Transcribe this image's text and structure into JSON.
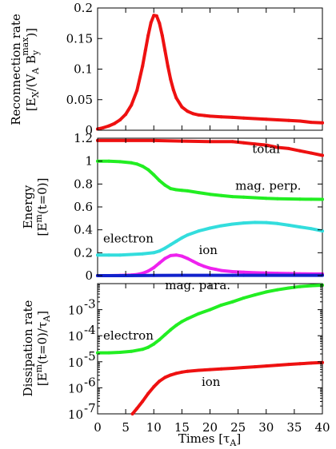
{
  "chart_data": [
    {
      "type": "line",
      "ylabel_line1": "Reconnection rate",
      "ylabel_line2": "[E",
      "ylabel_sub": "X",
      "ylabel_rest": "/(V",
      "ylabel_sub2": "A",
      "ylabel_rest2": " B",
      "ylabel_sub3": "y",
      "ylabel_sup3": "max",
      "ylabel_end": ")]",
      "xlim": [
        0,
        40
      ],
      "ylim": [
        0,
        0.2
      ],
      "yscale": "linear",
      "yticks": [
        0,
        0.05,
        0.1,
        0.15,
        0.2
      ],
      "ytick_labels": [
        "0",
        "0.05",
        "0.1",
        "0.15",
        "0.2"
      ],
      "series": [
        {
          "color": "#ee1111",
          "x": [
            0,
            1,
            2,
            3,
            4,
            5,
            6,
            7,
            8,
            8.5,
            9,
            9.5,
            10,
            10.5,
            11,
            11.5,
            12,
            12.5,
            13,
            13.5,
            14,
            15,
            16,
            17,
            18,
            19,
            20,
            22,
            24,
            26,
            28,
            30,
            32,
            34,
            36,
            38,
            40
          ],
          "y": [
            0.002,
            0.004,
            0.007,
            0.011,
            0.017,
            0.026,
            0.041,
            0.065,
            0.105,
            0.13,
            0.155,
            0.176,
            0.188,
            0.187,
            0.175,
            0.155,
            0.13,
            0.105,
            0.083,
            0.066,
            0.053,
            0.038,
            0.031,
            0.027,
            0.025,
            0.024,
            0.023,
            0.022,
            0.021,
            0.02,
            0.019,
            0.018,
            0.017,
            0.016,
            0.015,
            0.013,
            0.012
          ]
        }
      ]
    },
    {
      "type": "line",
      "ylabel_line1": "Energy",
      "ylabel_line2": "[E",
      "ylabel_sup": "m",
      "ylabel_rest": "(t=0)]",
      "xlim": [
        0,
        40
      ],
      "ylim": [
        0,
        1.2
      ],
      "yscale": "linear",
      "yticks": [
        0,
        0.2,
        0.4,
        0.6,
        0.8,
        1,
        1.2
      ],
      "ytick_labels": [
        "0",
        "0.2",
        "0.4",
        "0.6",
        "0.8",
        "1",
        "1.2"
      ],
      "annotations": [
        {
          "text": "total",
          "x": 27.5,
          "y": 1.07
        },
        {
          "text": "mag. perp.",
          "x": 24.5,
          "y": 0.75
        },
        {
          "text": "electron",
          "x": 1.0,
          "y": 0.29
        },
        {
          "text": "ion",
          "x": 18.0,
          "y": 0.19
        },
        {
          "text": "mag. para.",
          "x": 12.0,
          "y": -0.12
        }
      ],
      "series": [
        {
          "name": "total",
          "color": "#ee1111",
          "x": [
            0,
            5,
            10,
            15,
            20,
            24,
            26,
            28,
            30,
            32,
            34,
            36,
            38,
            40
          ],
          "y": [
            1.18,
            1.18,
            1.18,
            1.175,
            1.17,
            1.17,
            1.16,
            1.15,
            1.14,
            1.12,
            1.11,
            1.09,
            1.07,
            1.05
          ]
        },
        {
          "name": "mag. perp.",
          "color": "#22ee22",
          "x": [
            0,
            2,
            4,
            6,
            7,
            8,
            9,
            10,
            11,
            12,
            13,
            14,
            15,
            16,
            18,
            20,
            22,
            24,
            26,
            28,
            30,
            32,
            34,
            36,
            38,
            40
          ],
          "y": [
            1.0,
            1.0,
            0.995,
            0.985,
            0.975,
            0.955,
            0.925,
            0.88,
            0.83,
            0.79,
            0.76,
            0.75,
            0.745,
            0.74,
            0.725,
            0.71,
            0.7,
            0.69,
            0.685,
            0.68,
            0.675,
            0.672,
            0.67,
            0.668,
            0.667,
            0.666
          ]
        },
        {
          "name": "electron",
          "color": "#33dddd",
          "x": [
            0,
            2,
            4,
            6,
            8,
            10,
            11,
            12,
            13,
            14,
            15,
            16,
            18,
            20,
            22,
            24,
            26,
            28,
            30,
            32,
            34,
            36,
            38,
            40
          ],
          "y": [
            0.18,
            0.18,
            0.18,
            0.185,
            0.19,
            0.2,
            0.215,
            0.24,
            0.27,
            0.3,
            0.33,
            0.355,
            0.39,
            0.415,
            0.435,
            0.45,
            0.46,
            0.465,
            0.463,
            0.455,
            0.44,
            0.425,
            0.41,
            0.39
          ]
        },
        {
          "name": "ion",
          "color": "#ee22ee",
          "x": [
            0,
            2,
            4,
            6,
            7,
            8,
            9,
            10,
            11,
            12,
            13,
            14,
            15,
            16,
            17,
            18,
            19,
            20,
            21,
            22,
            24,
            26,
            28,
            30,
            32,
            34,
            36,
            38,
            40
          ],
          "y": [
            0.0,
            0.0,
            0.002,
            0.005,
            0.01,
            0.02,
            0.04,
            0.07,
            0.11,
            0.15,
            0.175,
            0.18,
            0.17,
            0.15,
            0.125,
            0.1,
            0.08,
            0.065,
            0.055,
            0.045,
            0.035,
            0.03,
            0.025,
            0.022,
            0.02,
            0.018,
            0.016,
            0.015,
            0.015
          ]
        },
        {
          "name": "mag. para.",
          "color": "#1122cc",
          "x": [
            0,
            5,
            10,
            15,
            20,
            24,
            26,
            30,
            35,
            40
          ],
          "y": [
            0.0,
            0.0,
            0.002,
            0.003,
            0.003,
            0.003,
            0.003,
            0.003,
            0.003,
            0.003
          ]
        }
      ]
    },
    {
      "type": "line",
      "ylabel_line1": "Dissipation rate",
      "ylabel_line2": "[E",
      "ylabel_sup": "m",
      "ylabel_rest": "(t=0)/τ",
      "ylabel_sub": "A",
      "ylabel_end": "]",
      "xlabel": "Times [τ",
      "xlabel_sub": "A",
      "xlabel_end": "]",
      "xlim": [
        0,
        40
      ],
      "ylim": [
        1e-07,
        0.01
      ],
      "yscale": "log",
      "xticks": [
        0,
        5,
        10,
        15,
        20,
        25,
        30,
        35,
        40
      ],
      "xtick_labels": [
        "0",
        "5",
        "10",
        "15",
        "20",
        "25",
        "30",
        "35",
        "40"
      ],
      "ytick_labels": [
        {
          "base": "10",
          "exp": "-7",
          "value": 1e-07
        },
        {
          "base": "10",
          "exp": "-6",
          "value": 1e-06
        },
        {
          "base": "10",
          "exp": "-5",
          "value": 1e-05
        },
        {
          "base": "10",
          "exp": "-4",
          "value": 0.0001
        },
        {
          "base": "10",
          "exp": "-3",
          "value": 0.001
        }
      ],
      "annotations": [
        {
          "text": "electron",
          "x": 1.0,
          "y": 7e-05
        },
        {
          "text": "ion",
          "x": 18.5,
          "y": 1.2e-06
        }
      ],
      "series": [
        {
          "name": "electron",
          "color": "#22ee22",
          "x": [
            0,
            2,
            4,
            6,
            8,
            9,
            10,
            11,
            12,
            13,
            14,
            15,
            16,
            18,
            20,
            22,
            24,
            26,
            28,
            30,
            32,
            34,
            36,
            38,
            40
          ],
          "y": [
            2.2e-05,
            2.2e-05,
            2.3e-05,
            2.5e-05,
            3e-05,
            3.6e-05,
            4.8e-05,
            7e-05,
            0.00011,
            0.00017,
            0.00025,
            0.00035,
            0.00045,
            0.0007,
            0.001,
            0.0015,
            0.002,
            0.0028,
            0.0037,
            0.0048,
            0.0058,
            0.0068,
            0.0077,
            0.0083,
            0.0087
          ]
        },
        {
          "name": "ion",
          "color": "#ee1111",
          "x": [
            6.2,
            7,
            8,
            9,
            10,
            11,
            12,
            13,
            14,
            15,
            16,
            18,
            20,
            22,
            24,
            26,
            28,
            30,
            32,
            34,
            36,
            38,
            40
          ],
          "y": [
            1e-07,
            1.6e-07,
            3e-07,
            6e-07,
            1.1e-06,
            1.8e-06,
            2.5e-06,
            3.1e-06,
            3.6e-06,
            4e-06,
            4.3e-06,
            4.7e-06,
            5e-06,
            5.3e-06,
            5.6e-06,
            6e-06,
            6.4e-06,
            6.9e-06,
            7.4e-06,
            7.9e-06,
            8.4e-06,
            8.9e-06,
            9.3e-06
          ]
        }
      ]
    }
  ]
}
